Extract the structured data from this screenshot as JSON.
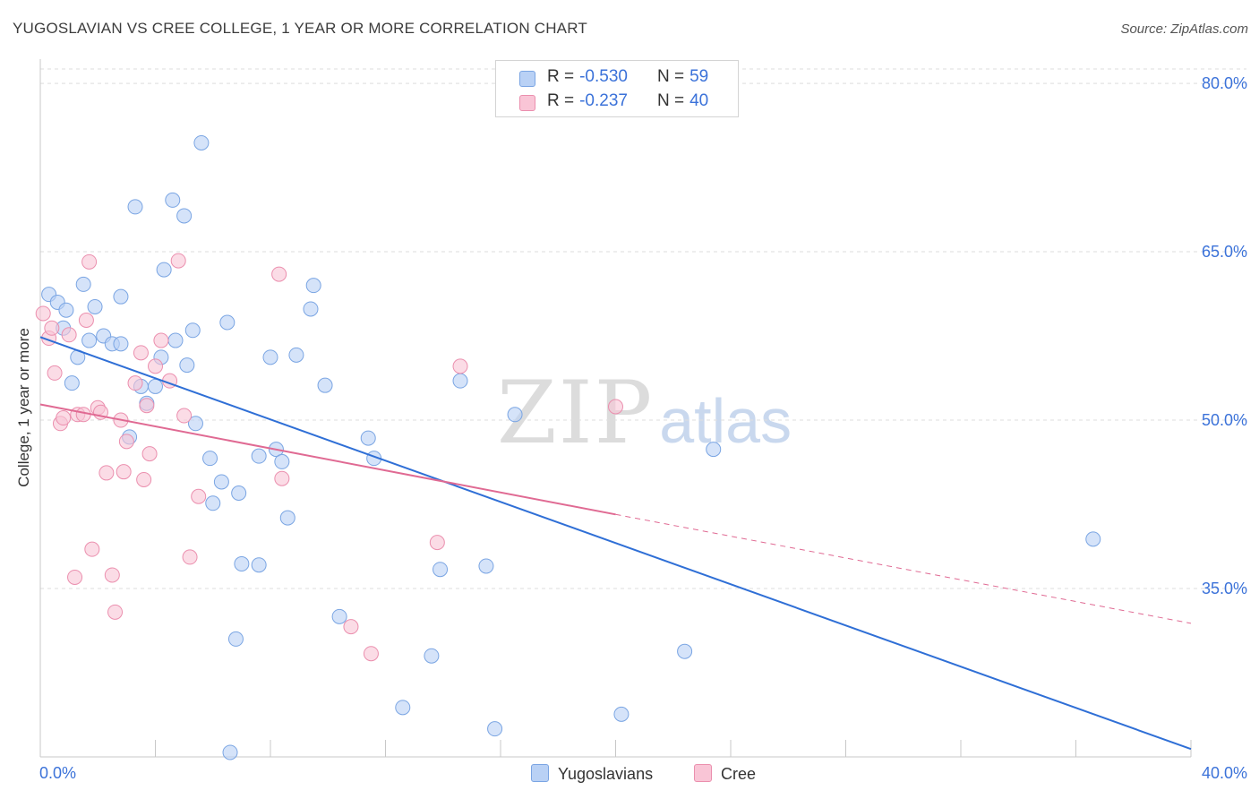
{
  "title": "YUGOSLAVIAN VS CREE COLLEGE, 1 YEAR OR MORE CORRELATION CHART",
  "source": "Source: ZipAtlas.com",
  "watermark": {
    "zip": "ZIP",
    "atlas": "atlas"
  },
  "colors": {
    "blue_fill": "#b9d1f5",
    "blue_stroke": "#7aa5e3",
    "blue_line": "#2f6fd6",
    "pink_fill": "#f9c5d6",
    "pink_stroke": "#eb8fae",
    "pink_line": "#e06a93",
    "tick_label": "#3b72d9",
    "grid": "#dedede"
  },
  "legend": {
    "rows": [
      {
        "r_label": "R =",
        "r_value": "-0.530",
        "n_label": "N =",
        "n_value": "59"
      },
      {
        "r_label": "R =",
        "r_value": "-0.237",
        "n_label": "N =",
        "n_value": "40"
      }
    ]
  },
  "bottom_legend": [
    "Yugoslavians",
    "Cree"
  ],
  "chart_data": {
    "type": "scatter",
    "title": "YUGOSLAVIAN VS CREE COLLEGE, 1 YEAR OR MORE CORRELATION CHART",
    "xlabel": "",
    "ylabel": "College, 1 year or more",
    "xlim": [
      0,
      40
    ],
    "ylim": [
      20,
      82
    ],
    "x_tick_labels": [
      "0.0%",
      "40.0%"
    ],
    "y_ticks": [
      35,
      50,
      65,
      80
    ],
    "y_tick_labels": [
      "35.0%",
      "50.0%",
      "65.0%",
      "80.0%"
    ],
    "grid": "horizontal dashed",
    "series": [
      {
        "name": "Yugoslavians",
        "R": -0.53,
        "N": 59,
        "trend": {
          "x": [
            0.0,
            40.0
          ],
          "y": [
            57.4,
            20.7
          ],
          "dashed_to": null
        },
        "points": [
          [
            0.3,
            61.2
          ],
          [
            0.6,
            60.5
          ],
          [
            0.9,
            59.8
          ],
          [
            0.8,
            58.2
          ],
          [
            1.1,
            53.3
          ],
          [
            1.3,
            55.6
          ],
          [
            1.5,
            62.1
          ],
          [
            1.7,
            57.1
          ],
          [
            1.9,
            60.1
          ],
          [
            2.2,
            57.5
          ],
          [
            2.5,
            56.8
          ],
          [
            2.8,
            56.8
          ],
          [
            2.8,
            61.0
          ],
          [
            3.1,
            48.5
          ],
          [
            3.3,
            69.0
          ],
          [
            3.5,
            53.0
          ],
          [
            3.7,
            51.5
          ],
          [
            4.0,
            53.0
          ],
          [
            4.2,
            55.6
          ],
          [
            4.3,
            63.4
          ],
          [
            4.6,
            69.6
          ],
          [
            4.7,
            57.1
          ],
          [
            5.0,
            68.2
          ],
          [
            5.1,
            54.9
          ],
          [
            5.3,
            58.0
          ],
          [
            5.4,
            49.7
          ],
          [
            5.6,
            74.7
          ],
          [
            5.9,
            46.6
          ],
          [
            6.0,
            42.6
          ],
          [
            6.3,
            44.5
          ],
          [
            6.5,
            58.7
          ],
          [
            6.8,
            30.5
          ],
          [
            6.9,
            43.5
          ],
          [
            7.0,
            37.2
          ],
          [
            7.6,
            37.1
          ],
          [
            7.6,
            46.8
          ],
          [
            8.0,
            55.6
          ],
          [
            8.2,
            47.4
          ],
          [
            8.4,
            46.3
          ],
          [
            8.6,
            41.3
          ],
          [
            8.9,
            55.8
          ],
          [
            9.4,
            59.9
          ],
          [
            9.5,
            62.0
          ],
          [
            9.9,
            53.1
          ],
          [
            10.4,
            32.5
          ],
          [
            11.4,
            48.4
          ],
          [
            11.6,
            46.6
          ],
          [
            12.6,
            24.4
          ],
          [
            13.6,
            29.0
          ],
          [
            13.9,
            36.7
          ],
          [
            14.6,
            53.5
          ],
          [
            15.5,
            37.0
          ],
          [
            15.8,
            22.5
          ],
          [
            16.5,
            50.5
          ],
          [
            20.2,
            23.8
          ],
          [
            22.4,
            29.4
          ],
          [
            23.4,
            47.4
          ],
          [
            36.6,
            39.4
          ],
          [
            6.6,
            20.4
          ]
        ]
      },
      {
        "name": "Cree",
        "R": -0.237,
        "N": 40,
        "trend": {
          "x": [
            0.0,
            20.0
          ],
          "y": [
            51.4,
            41.6
          ],
          "dashed_to": [
            40.0,
            31.9
          ]
        },
        "points": [
          [
            0.1,
            59.5
          ],
          [
            0.3,
            57.3
          ],
          [
            0.4,
            58.2
          ],
          [
            0.5,
            54.2
          ],
          [
            0.7,
            49.7
          ],
          [
            0.8,
            50.2
          ],
          [
            1.0,
            57.6
          ],
          [
            1.2,
            36.0
          ],
          [
            1.3,
            50.5
          ],
          [
            1.5,
            50.5
          ],
          [
            1.6,
            58.9
          ],
          [
            1.7,
            64.1
          ],
          [
            1.8,
            38.5
          ],
          [
            2.0,
            51.1
          ],
          [
            2.1,
            50.7
          ],
          [
            2.3,
            45.3
          ],
          [
            2.5,
            36.2
          ],
          [
            2.6,
            32.9
          ],
          [
            2.8,
            50.0
          ],
          [
            2.9,
            45.4
          ],
          [
            3.0,
            48.1
          ],
          [
            3.3,
            53.3
          ],
          [
            3.5,
            56.0
          ],
          [
            3.6,
            44.7
          ],
          [
            3.7,
            51.3
          ],
          [
            3.8,
            47.0
          ],
          [
            4.0,
            54.8
          ],
          [
            4.2,
            57.1
          ],
          [
            4.5,
            53.5
          ],
          [
            4.8,
            64.2
          ],
          [
            5.0,
            50.4
          ],
          [
            5.2,
            37.8
          ],
          [
            5.5,
            43.2
          ],
          [
            8.3,
            63.0
          ],
          [
            8.4,
            44.8
          ],
          [
            10.8,
            31.6
          ],
          [
            11.5,
            29.2
          ],
          [
            13.8,
            39.1
          ],
          [
            14.6,
            54.8
          ],
          [
            20.0,
            51.2
          ]
        ]
      }
    ]
  }
}
